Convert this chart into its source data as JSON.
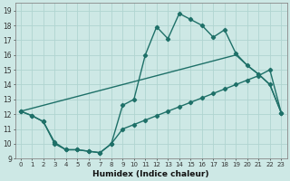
{
  "xlabel": "Humidex (Indice chaleur)",
  "xlim": [
    -0.5,
    23.5
  ],
  "ylim": [
    9,
    19.5
  ],
  "yticks": [
    9,
    10,
    11,
    12,
    13,
    14,
    15,
    16,
    17,
    18,
    19
  ],
  "xticks": [
    0,
    1,
    2,
    3,
    4,
    5,
    6,
    7,
    8,
    9,
    10,
    11,
    12,
    13,
    14,
    15,
    16,
    17,
    18,
    19,
    20,
    21,
    22,
    23
  ],
  "xtick_labels": [
    "0",
    "1",
    "2",
    "3",
    "4",
    "5",
    "6",
    "7",
    "8",
    "9",
    "10",
    "11",
    "12",
    "13",
    "14",
    "15",
    "16",
    "17",
    "18",
    "19",
    "20",
    "21",
    "22",
    "23"
  ],
  "bg_color": "#cde8e5",
  "grid_color": "#b0d4d0",
  "line_color": "#1e7068",
  "line1_x": [
    0,
    1,
    2,
    3,
    4,
    5,
    6,
    7,
    8,
    9,
    10,
    11,
    12,
    13,
    14,
    15,
    16,
    17,
    18,
    19,
    20,
    21,
    22,
    23
  ],
  "line1_y": [
    12.2,
    11.9,
    11.5,
    10.1,
    9.6,
    9.6,
    9.5,
    9.4,
    10.0,
    12.6,
    13.0,
    16.0,
    17.9,
    17.1,
    18.8,
    18.4,
    18.0,
    17.2,
    17.7,
    16.1,
    15.3,
    14.7,
    14.0,
    12.1
  ],
  "line2_x": [
    0,
    1,
    2,
    3,
    4,
    5,
    6,
    7,
    8,
    9,
    10,
    11,
    12,
    13,
    14,
    15,
    16,
    17,
    18,
    19,
    20,
    21,
    22,
    23
  ],
  "line2_y": [
    12.2,
    11.9,
    11.5,
    10.0,
    9.6,
    9.6,
    9.5,
    9.4,
    10.0,
    11.0,
    11.3,
    11.6,
    11.9,
    12.2,
    12.5,
    12.8,
    13.1,
    13.4,
    13.7,
    14.0,
    14.3,
    14.6,
    15.0,
    12.1
  ],
  "line3_x": [
    0,
    19,
    20,
    21,
    22,
    23
  ],
  "line3_y": [
    12.2,
    16.0,
    15.3,
    14.7,
    14.0,
    12.1
  ],
  "marker": "D",
  "marker_size": 2.2,
  "line_width": 1.0
}
